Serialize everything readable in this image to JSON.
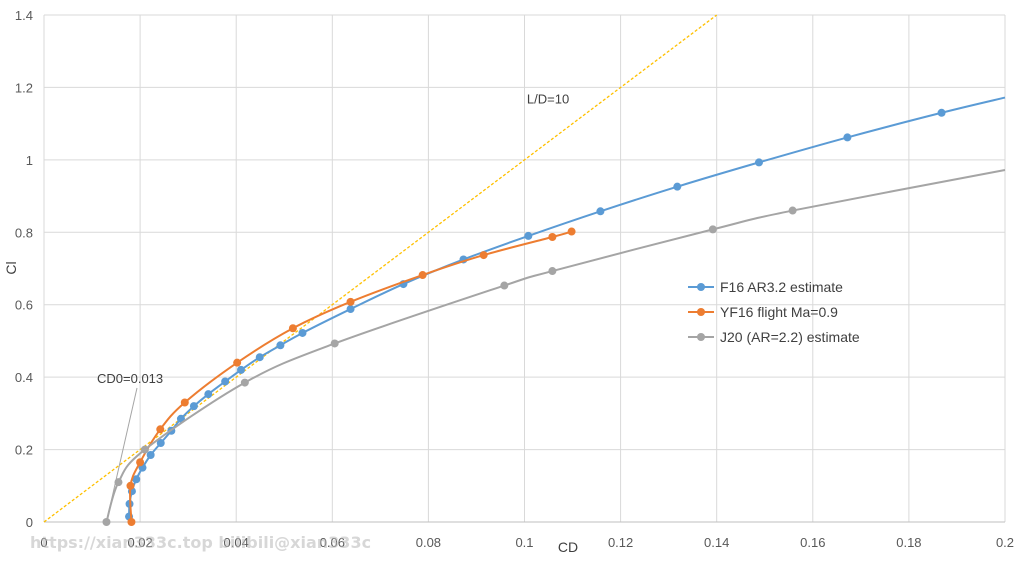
{
  "chart_data": {
    "type": "line",
    "xlabel": "CD",
    "ylabel": "Cl",
    "xlim": [
      0,
      0.2
    ],
    "ylim": [
      0,
      1.4
    ],
    "x_ticks": [
      "0",
      "0.02",
      "0.04",
      "0.06",
      "0.08",
      "0.1",
      "0.12",
      "0.14",
      "0.16",
      "0.18",
      "0.2"
    ],
    "y_ticks": [
      "0",
      "0.2",
      "0.4",
      "0.6",
      "0.8",
      "1",
      "1.2",
      "1.4"
    ],
    "grid": true,
    "legend_position": "right",
    "series": [
      {
        "name": "F16 AR3.2 estimate",
        "color": "#5b9bd5",
        "points": [
          [
            0.0177,
            0.015
          ],
          [
            0.0178,
            0.05
          ],
          [
            0.0183,
            0.085
          ],
          [
            0.0192,
            0.118
          ],
          [
            0.0205,
            0.15
          ],
          [
            0.0222,
            0.185
          ],
          [
            0.0243,
            0.218
          ],
          [
            0.0265,
            0.252
          ],
          [
            0.0285,
            0.285
          ],
          [
            0.0312,
            0.32
          ],
          [
            0.0342,
            0.353
          ],
          [
            0.0377,
            0.388
          ],
          [
            0.041,
            0.42
          ],
          [
            0.0449,
            0.455
          ],
          [
            0.0492,
            0.488
          ],
          [
            0.0538,
            0.522
          ],
          [
            0.0638,
            0.588
          ],
          [
            0.0748,
            0.657
          ],
          [
            0.0873,
            0.725
          ],
          [
            0.1008,
            0.79
          ],
          [
            0.1158,
            0.858
          ],
          [
            0.1318,
            0.926
          ],
          [
            0.1488,
            0.993
          ],
          [
            0.1672,
            1.062
          ],
          [
            0.1868,
            1.13
          ],
          [
            0.2,
            1.172
          ]
        ]
      },
      {
        "name": "YF16 flight Ma=0.9",
        "color": "#ed7d31",
        "points": [
          [
            0.0182,
            0.0
          ],
          [
            0.018,
            0.1
          ],
          [
            0.02,
            0.165
          ],
          [
            0.0242,
            0.256
          ],
          [
            0.0293,
            0.33
          ],
          [
            0.0402,
            0.44
          ],
          [
            0.0518,
            0.535
          ],
          [
            0.0638,
            0.608
          ],
          [
            0.0788,
            0.682
          ],
          [
            0.0915,
            0.737
          ],
          [
            0.1058,
            0.787
          ],
          [
            0.1098,
            0.802
          ]
        ]
      },
      {
        "name": "J20 (AR=2.2) estimate",
        "color": "#a5a5a5",
        "points": [
          [
            0.013,
            0.0
          ],
          [
            0.0155,
            0.11
          ],
          [
            0.021,
            0.2
          ],
          [
            0.0418,
            0.385
          ],
          [
            0.0605,
            0.493
          ],
          [
            0.0958,
            0.653
          ],
          [
            0.1058,
            0.693
          ],
          [
            0.1392,
            0.808
          ],
          [
            0.1558,
            0.86
          ],
          [
            0.2,
            0.972
          ]
        ]
      }
    ],
    "reference_line": {
      "label": "L/D=10",
      "slope": 10,
      "color": "#ffc000"
    },
    "annotations": [
      {
        "text": "CD0=0.013",
        "x": 0.013,
        "y": 0.0
      }
    ]
  },
  "watermark": "https://xian333c.top bilibili@xian333c"
}
